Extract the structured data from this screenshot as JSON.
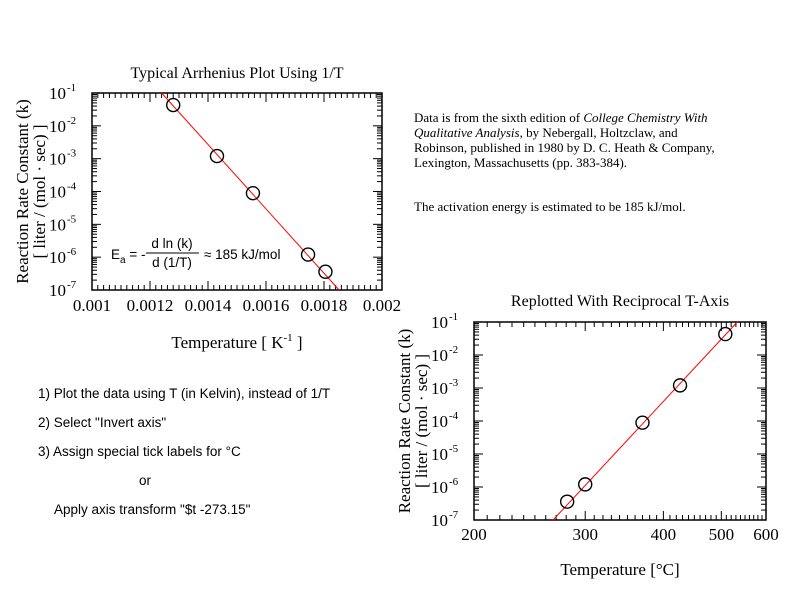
{
  "chart_data": [
    {
      "type": "scatter",
      "title": "Typical Arrhenius Plot Using 1/T",
      "xlabel": "Temperature [ K",
      "xlabel_sup": "-1",
      "xlabel_end": " ]",
      "ylabel": [
        "Reaction Rate Constant (k)",
        "[ liter / (mol · sec) ]"
      ],
      "xscale": "linear",
      "yscale": "log",
      "xlim": [
        0.001,
        0.002
      ],
      "ylim": [
        1e-07,
        0.1
      ],
      "xticks": [
        0.001,
        0.0012,
        0.0014,
        0.0016,
        0.0018,
        0.002
      ],
      "xtick_labels": [
        "0.001",
        "0.0012",
        "0.0014",
        "0.0016",
        "0.0018",
        "0.002"
      ],
      "yticks_exp": [
        -1,
        -2,
        -3,
        -4,
        -5,
        -6,
        -7
      ],
      "ytick_base": "10",
      "x": [
        0.00128,
        0.001431,
        0.001555,
        0.001745,
        0.001805
      ],
      "y": [
        0.043,
        0.0012,
        8.9e-05,
        1.2e-06,
        3.6e-07
      ],
      "fit_line": {
        "x": [
          0.00124,
          0.001852
        ],
        "y": [
          0.1,
          1e-07
        ],
        "color": "#ff0000"
      },
      "marker": "open-circle",
      "annotation": {
        "lhs": "E",
        "sub": "a",
        "eq": " = - ",
        "num": "d ln (k)",
        "den": "d (1/T)",
        "rhs": "≈ 185 kJ/mol"
      },
      "grid": false
    },
    {
      "type": "scatter",
      "title": "Replotted With Reciprocal T-Axis",
      "xlabel": "Temperature [°C]",
      "ylabel": [
        "Reaction Rate Constant (k)",
        "[ liter / (mol · sec) ]"
      ],
      "xscale": "reciprocal",
      "yscale": "log",
      "xlim": [
        200,
        600
      ],
      "ylim": [
        1e-07,
        0.1
      ],
      "xticks": [
        200,
        300,
        400,
        500,
        600
      ],
      "xtick_labels": [
        "200",
        "300",
        "400",
        "500",
        "600"
      ],
      "yticks_exp": [
        -1,
        -2,
        -3,
        -4,
        -5,
        -6,
        -7
      ],
      "ytick_base": "10",
      "x": [
        508,
        426,
        370,
        300,
        281
      ],
      "y": [
        0.043,
        0.0012,
        8.9e-05,
        1.2e-06,
        3.6e-07
      ],
      "fit_line": {
        "x": [
          533,
          267
        ],
        "y": [
          0.1,
          1e-07
        ],
        "color": "#ff0000"
      },
      "marker": "open-circle",
      "grid": false
    }
  ],
  "notes": {
    "source_1": "Data is from the sixth edition of ",
    "source_title": "College Chemistry With Qualitative Analysis",
    "source_2": ", by Nebergall, Holtzclaw, and Robinson, published in 1980 by D. C. Heath & Company, Lexington, Massachusetts (pp. 383-384).",
    "activation": "The activation energy is estimated to be 185 kJ/mol."
  },
  "steps": {
    "s1": "1) Plot the data using T (in Kelvin), instead of 1/T",
    "s2": "2) Select \"Invert axis\"",
    "s3": "3) Assign special tick labels for °C",
    "or": "or",
    "alt": "Apply axis transform \"$t -273.15\""
  }
}
